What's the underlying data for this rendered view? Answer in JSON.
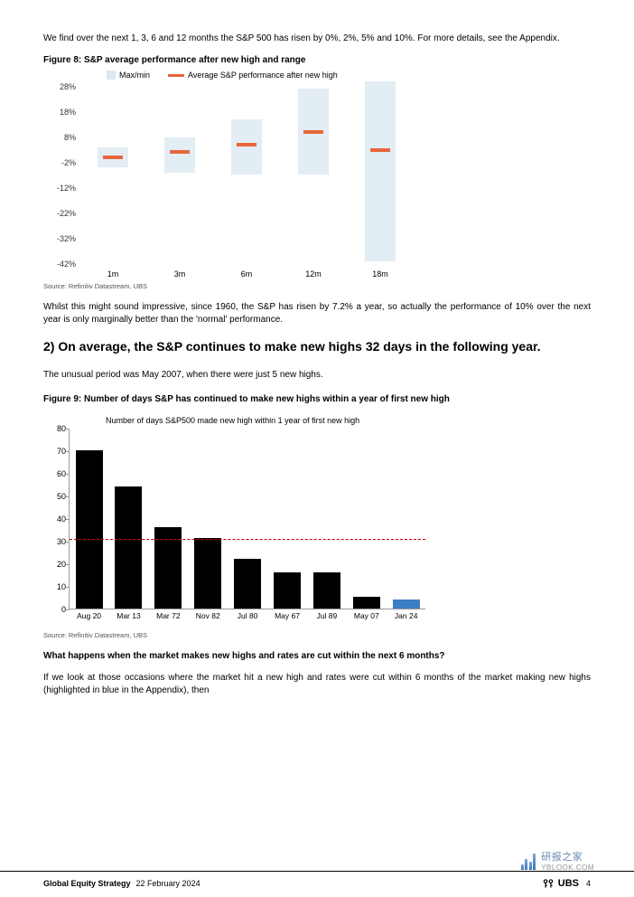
{
  "intro": "We find over the next 1, 3, 6 and 12 months the S&P 500 has risen by 0%, 2%, 5% and 10%. For more details, see the Appendix.",
  "fig8_title": "Figure 8: S&P average performance after new high and range",
  "fig8_source": "Source: Refinitiv Datastream, UBS",
  "mid_para": "Whilst this might sound impressive, since 1960, the S&P has risen by 7.2% a year, so actually the performance of 10% over the next year is only marginally better than the 'normal' performance.",
  "heading2": "2) On average, the S&P continues to make new highs 32 days in the following year.",
  "unusual": "The unusual period was May 2007, when there were just 5 new highs.",
  "fig9_title": "Figure 9: Number of days S&P has continued to make new highs within a year of first new high",
  "fig9_legend": "Number of days S&P500 made new high within 1 year of first new high",
  "fig9_source": "Source: Refinitiv Datastream, UBS",
  "question": "What happens when the market makes new highs and rates are cut within the next 6 months?",
  "last_para": "If we look at those occasions where the market hit a new high and rates were cut within 6 months of the market making new highs (highlighted in blue in the Appendix), then",
  "chart1": {
    "type": "range-bar",
    "legend_range": "Max/min",
    "legend_avg": "Average S&P performance after new high",
    "ylim": [
      -42,
      28
    ],
    "yticks": [
      28,
      18,
      8,
      -2,
      -12,
      -22,
      -32,
      -42
    ],
    "ytick_labels": [
      "28%",
      "18%",
      "8%",
      "-2%",
      "-12%",
      "-22%",
      "-32%",
      "-42%"
    ],
    "categories": [
      "1m",
      "3m",
      "6m",
      "12m",
      "18m"
    ],
    "min": [
      -4,
      -6,
      -7,
      -7,
      -41
    ],
    "max": [
      4,
      8,
      15,
      27,
      30
    ],
    "avg": [
      0,
      2,
      5,
      10,
      3
    ],
    "range_color": "#e3edf4",
    "avg_color": "#e8663b",
    "background_color": "#ffffff",
    "label_fontsize": 9
  },
  "chart2": {
    "type": "bar",
    "ylim": [
      0,
      80
    ],
    "yticks": [
      0,
      10,
      20,
      30,
      40,
      50,
      60,
      70,
      80
    ],
    "categories": [
      "Aug 20",
      "Mar 13",
      "Mar 72",
      "Nov 82",
      "Jul 80",
      "May 67",
      "Jul 89",
      "May 07",
      "Jan 24"
    ],
    "values": [
      70,
      54,
      36,
      31,
      22,
      16,
      16,
      5,
      4
    ],
    "bar_colors": [
      "#000000",
      "#000000",
      "#000000",
      "#000000",
      "#000000",
      "#000000",
      "#000000",
      "#000000",
      "#3b7fc4"
    ],
    "dashed_line_value": 31,
    "dashed_line_color": "#cc0000",
    "label_fontsize": 9
  },
  "footer": {
    "title": "Global Equity Strategy",
    "date": "22 February 2024",
    "brand": "UBS",
    "page": "4"
  },
  "watermark": {
    "text": "研报之家",
    "url": "YBLOOK.COM"
  }
}
